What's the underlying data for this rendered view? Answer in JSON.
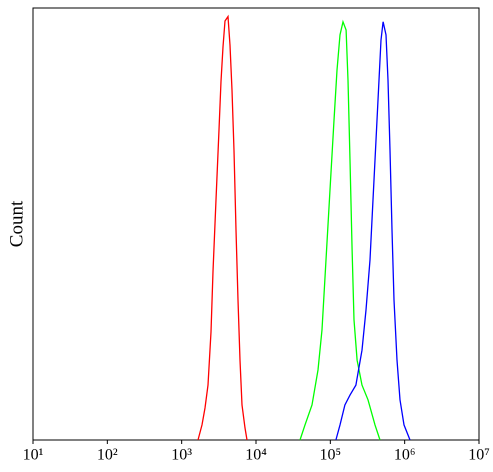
{
  "chart_data": {
    "type": "line",
    "y_label": "Count",
    "xscale": "log",
    "xlim": [
      10,
      10000000
    ],
    "ylim": [
      0,
      100
    ],
    "xticks": [
      {
        "value": 10,
        "label": "10¹"
      },
      {
        "value": 100,
        "label": "10²"
      },
      {
        "value": 1000,
        "label": "10³"
      },
      {
        "value": 10000,
        "label": "10⁴"
      },
      {
        "value": 100000,
        "label": "10⁵"
      },
      {
        "value": 1000000,
        "label": "10⁶"
      },
      {
        "value": 10000000,
        "label": "10⁷"
      }
    ],
    "series": [
      {
        "color": "#ff0000",
        "x": [
          1660,
          1880,
          2060,
          2260,
          2480,
          2640,
          2900,
          3180,
          3380,
          3600,
          3830,
          4200,
          4470,
          4750,
          5060,
          5380,
          5730,
          6100,
          6490,
          7110,
          7570
        ],
        "values": [
          0,
          3.5,
          7.4,
          12.7,
          25,
          39,
          55.6,
          71.8,
          83,
          91,
          97,
          98,
          91.4,
          81,
          67,
          48.6,
          32.4,
          18.5,
          8.1,
          2.8,
          0
        ]
      },
      {
        "color": "#00ff00",
        "x": [
          39100,
          45600,
          56700,
          68300,
          77300,
          87500,
          99100,
          112000,
          123000,
          135000,
          148000,
          163000,
          173000,
          184000,
          196000,
          208000,
          229000,
          267000,
          321000,
          399000,
          466000
        ],
        "values": [
          0,
          3.5,
          8.1,
          16.2,
          25.5,
          41.7,
          57.9,
          74,
          85.6,
          93.8,
          96.8,
          94.9,
          83.3,
          64.8,
          44,
          27.8,
          18.5,
          12.7,
          9.3,
          3.5,
          0
        ]
      },
      {
        "color": "#0000ff",
        "x": [
          119000,
          135000,
          157000,
          184000,
          221000,
          267000,
          302000,
          342000,
          375000,
          412000,
          452000,
          481000,
          512000,
          561000,
          597000,
          635000,
          676000,
          719000,
          789000,
          865000,
          980000,
          1180000
        ],
        "values": [
          0,
          3.5,
          8.1,
          10.4,
          12.7,
          20.8,
          30.1,
          41.7,
          55.6,
          69.4,
          83.3,
          92.6,
          96.8,
          93.8,
          83.3,
          67.1,
          48.6,
          32.4,
          18.5,
          9.3,
          3.5,
          0
        ]
      }
    ]
  }
}
